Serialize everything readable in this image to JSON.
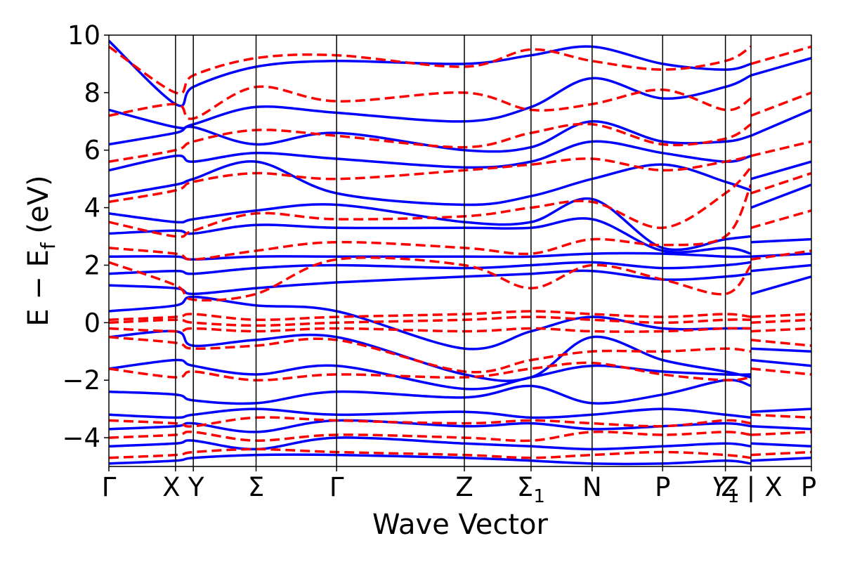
{
  "chart_data": {
    "type": "line",
    "title": "",
    "xlabel": "Wave Vector",
    "ylabel_parts": {
      "main": "E − E",
      "subscript": "f",
      "unit": " (eV)"
    },
    "ylim": [
      -5,
      10
    ],
    "yticks": [
      -4,
      -2,
      0,
      2,
      4,
      6,
      8,
      10
    ],
    "ytick_labels": [
      "−4",
      "−2",
      "0",
      "2",
      "4",
      "6",
      "8",
      "10"
    ],
    "x_range": [
      0,
      11.56
    ],
    "kpoints": [
      {
        "x": 0.0,
        "label": "Γ"
      },
      {
        "x": 1.2,
        "label": "X"
      },
      {
        "x": 1.52,
        "label": "Y"
      },
      {
        "x": 2.65,
        "label": "Σ"
      },
      {
        "x": 4.1,
        "label": "Γ"
      },
      {
        "x": 6.4,
        "label": "Z"
      },
      {
        "x": 7.6,
        "label": "Σ",
        "subscript": "1"
      },
      {
        "x": 8.7,
        "label": "N"
      },
      {
        "x": 9.97,
        "label": "P"
      },
      {
        "x": 11.1,
        "label": "Y",
        "subscript": "1",
        "italic": true
      },
      {
        "x": 11.56,
        "label": "Z"
      }
    ],
    "segment2": {
      "xlim": [
        0,
        1.0
      ],
      "kpoints": [
        {
          "x": 0.0,
          "label": "X"
        },
        {
          "x": 1.0,
          "label": "P"
        }
      ]
    },
    "break_marker": "|",
    "grid": false,
    "series": [
      {
        "style": "solid",
        "color": "#0000ff",
        "bands": [
          [
            -4.9,
            -4.8,
            -4.7,
            -4.6,
            -4.6,
            -4.7,
            -4.8,
            -4.9,
            -4.9,
            -4.8,
            -4.9
          ],
          [
            -4.3,
            -4.2,
            -4.1,
            -4.4,
            -4.0,
            -4.2,
            -4.3,
            -4.4,
            -4.3,
            -4.2,
            -4.3
          ],
          [
            -3.7,
            -3.6,
            -3.5,
            -3.8,
            -3.4,
            -3.6,
            -3.5,
            -3.7,
            -3.6,
            -3.5,
            -3.6
          ],
          [
            -3.2,
            -3.3,
            -3.2,
            -3.0,
            -3.2,
            -3.1,
            -3.3,
            -3.2,
            -3.0,
            -3.2,
            -3.3
          ],
          [
            -2.4,
            -2.5,
            -2.7,
            -2.8,
            -2.4,
            -2.6,
            -2.2,
            -2.8,
            -2.5,
            -2.0,
            -2.2
          ],
          [
            -1.6,
            -1.3,
            -1.5,
            -1.8,
            -1.5,
            -2.3,
            -1.9,
            -1.5,
            -1.7,
            -1.8,
            -1.8
          ],
          [
            -0.5,
            -0.3,
            -0.8,
            -0.6,
            -0.5,
            -1.8,
            -1.9,
            -0.5,
            -1.3,
            -1.7,
            -1.9
          ],
          [
            0.4,
            0.6,
            0.9,
            0.6,
            0.4,
            -0.9,
            -0.3,
            0.2,
            -0.2,
            -0.2,
            -0.2
          ],
          [
            1.3,
            1.2,
            1.0,
            1.2,
            1.4,
            1.6,
            1.7,
            1.8,
            1.5,
            1.6,
            1.7
          ],
          [
            1.7,
            1.8,
            1.7,
            1.9,
            2.0,
            1.9,
            2.0,
            2.1,
            1.9,
            2.0,
            2.1
          ],
          [
            2.3,
            2.3,
            2.2,
            2.3,
            2.3,
            2.3,
            2.3,
            2.4,
            2.4,
            2.3,
            2.3
          ],
          [
            3.1,
            3.2,
            3.1,
            3.4,
            3.3,
            3.3,
            3.3,
            3.6,
            2.5,
            2.6,
            2.4
          ],
          [
            3.8,
            3.5,
            3.6,
            3.9,
            4.1,
            3.5,
            3.5,
            4.3,
            2.6,
            2.9,
            3.0
          ],
          [
            4.4,
            4.8,
            5.0,
            5.6,
            4.5,
            4.1,
            4.4,
            5.0,
            5.5,
            4.9,
            4.6
          ],
          [
            5.3,
            5.8,
            5.6,
            5.9,
            5.7,
            5.4,
            5.6,
            6.3,
            5.9,
            5.6,
            5.8
          ],
          [
            6.2,
            6.6,
            6.8,
            6.2,
            6.6,
            6.0,
            6.1,
            7.0,
            6.3,
            6.3,
            6.5
          ],
          [
            7.4,
            6.8,
            6.9,
            7.5,
            7.3,
            7.0,
            7.5,
            8.5,
            7.8,
            8.2,
            8.6
          ],
          [
            9.8,
            7.6,
            8.2,
            8.9,
            9.1,
            9.0,
            9.3,
            9.6,
            9.0,
            8.8,
            9.0
          ]
        ],
        "segment2_bands": [
          [
            -4.8,
            -4.7
          ],
          [
            -4.2,
            -4.3
          ],
          [
            -3.6,
            -3.7
          ],
          [
            -3.1,
            -3.0
          ],
          [
            -1.3,
            -1.5
          ],
          [
            -0.9,
            -1.0
          ],
          [
            1.0,
            1.6
          ],
          [
            1.8,
            2.0
          ],
          [
            2.3,
            2.4
          ],
          [
            2.8,
            2.9
          ],
          [
            4.0,
            4.8
          ],
          [
            5.0,
            5.6
          ],
          [
            6.5,
            7.4
          ],
          [
            8.6,
            9.2
          ]
        ]
      },
      {
        "style": "dashed",
        "color": "#ff0000",
        "bands": [
          [
            -4.7,
            -4.6,
            -4.5,
            -4.4,
            -4.5,
            -4.6,
            -4.7,
            -4.6,
            -4.5,
            -4.6,
            -4.7
          ],
          [
            -4.0,
            -3.9,
            -3.8,
            -4.1,
            -3.9,
            -4.0,
            -4.1,
            -3.8,
            -3.9,
            -3.8,
            -3.9
          ],
          [
            -3.4,
            -3.5,
            -3.6,
            -3.3,
            -3.4,
            -3.5,
            -3.4,
            -3.5,
            -3.6,
            -3.4,
            -3.5
          ],
          [
            -1.6,
            -1.9,
            -1.7,
            -2.0,
            -1.8,
            -1.9,
            -1.6,
            -1.4,
            -1.8,
            -2.0,
            -1.9
          ],
          [
            -0.5,
            -0.7,
            -0.9,
            -0.8,
            -0.6,
            -1.7,
            -1.3,
            -1.0,
            -1.0,
            -0.9,
            -1.0
          ],
          [
            -0.2,
            -0.3,
            -0.2,
            -0.3,
            -0.2,
            -0.3,
            -0.2,
            -0.3,
            -0.3,
            -0.2,
            -0.2
          ],
          [
            0.0,
            0.1,
            0.0,
            -0.1,
            0.0,
            0.1,
            0.2,
            0.1,
            0.0,
            0.1,
            0.1
          ],
          [
            0.1,
            0.2,
            0.3,
            0.1,
            0.2,
            0.3,
            0.4,
            0.3,
            0.2,
            0.3,
            0.2
          ],
          [
            2.1,
            1.3,
            0.8,
            1.0,
            2.2,
            2.0,
            1.2,
            2.0,
            1.5,
            1.0,
            2.0
          ],
          [
            2.6,
            2.4,
            2.2,
            2.5,
            2.8,
            2.6,
            2.4,
            2.9,
            2.7,
            3.0,
            4.8
          ],
          [
            3.5,
            3.0,
            3.2,
            3.8,
            3.6,
            3.7,
            4.0,
            4.2,
            3.3,
            4.5,
            5.4
          ],
          [
            4.2,
            4.6,
            4.9,
            5.2,
            5.0,
            5.3,
            5.5,
            5.7,
            5.3,
            5.6,
            5.8
          ],
          [
            5.6,
            6.0,
            6.3,
            6.7,
            6.5,
            6.1,
            6.6,
            6.9,
            6.2,
            6.4,
            6.9
          ],
          [
            7.2,
            7.6,
            7.1,
            8.2,
            7.7,
            8.0,
            7.4,
            7.6,
            8.1,
            7.4,
            7.8
          ],
          [
            9.6,
            8.0,
            8.6,
            9.2,
            9.3,
            8.9,
            9.5,
            9.1,
            8.8,
            9.1,
            9.6
          ]
        ],
        "segment2_bands": [
          [
            -4.6,
            -4.5
          ],
          [
            -3.9,
            -3.8
          ],
          [
            -3.2,
            -3.3
          ],
          [
            -1.6,
            -1.8
          ],
          [
            -0.6,
            -0.8
          ],
          [
            -0.3,
            -0.2
          ],
          [
            0.0,
            0.1
          ],
          [
            0.2,
            0.3
          ],
          [
            2.2,
            2.5
          ],
          [
            3.3,
            3.9
          ],
          [
            4.5,
            5.2
          ],
          [
            5.8,
            6.3
          ],
          [
            7.2,
            8.0
          ],
          [
            9.0,
            9.6
          ]
        ]
      }
    ]
  }
}
